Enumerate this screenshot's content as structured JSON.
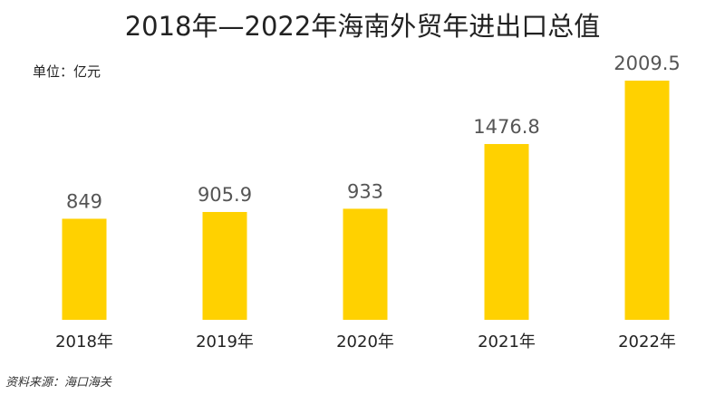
{
  "chart_data": {
    "type": "bar",
    "title": "2018年—2022年海南外贸年进出口总值",
    "unit": "单位：亿元",
    "categories": [
      "2018年",
      "2019年",
      "2020年",
      "2021年",
      "2022年"
    ],
    "values": [
      849,
      905.9,
      933,
      1476.8,
      2009.5
    ],
    "value_labels": [
      "849",
      "905.9",
      "933",
      "1476.8",
      "2009.5"
    ],
    "bar_color": "#FFD100",
    "xlabel": "",
    "ylabel": "",
    "grid": false,
    "legend": "none"
  },
  "source": "资料来源：海口海关"
}
